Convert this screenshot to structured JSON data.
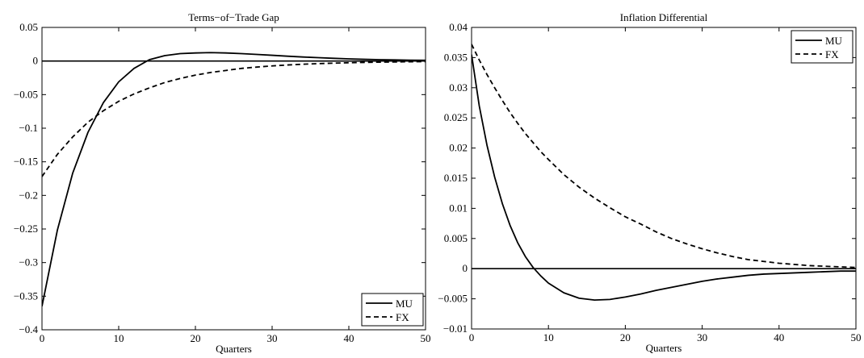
{
  "chart_data": [
    {
      "type": "line",
      "title": "Terms−of−Trade Gap",
      "xlabel": "Quarters",
      "ylabel": "",
      "xlim": [
        0,
        50
      ],
      "ylim": [
        -0.4,
        0.05
      ],
      "xticks": [
        0,
        10,
        20,
        30,
        40,
        50
      ],
      "xtick_labels": [
        "0",
        "10",
        "20",
        "30",
        "40",
        "50"
      ],
      "yticks": [
        0.05,
        0,
        -0.05,
        -0.1,
        -0.15,
        -0.2,
        -0.25,
        -0.3,
        -0.35,
        -0.4
      ],
      "ytick_labels": [
        "0.05",
        "0",
        "−0.05",
        "−0.1",
        "−0.15",
        "−0.2",
        "−0.25",
        "−0.3",
        "−0.35",
        "−0.4"
      ],
      "legend_position": "bottom-right",
      "grid": false,
      "zero_line": true,
      "x": [
        0,
        2,
        4,
        6,
        8,
        10,
        12,
        14,
        16,
        18,
        20,
        22,
        24,
        26,
        28,
        30,
        32,
        34,
        36,
        38,
        40,
        42,
        44,
        46,
        48,
        50
      ],
      "series": [
        {
          "name": "MU",
          "style": "solid",
          "values": [
            -0.365,
            -0.252,
            -0.167,
            -0.106,
            -0.062,
            -0.031,
            -0.011,
            0.002,
            0.008,
            0.011,
            0.012,
            0.0125,
            0.012,
            0.011,
            0.0098,
            0.0085,
            0.0072,
            0.006,
            0.005,
            0.004,
            0.0032,
            0.0025,
            0.002,
            0.0016,
            0.0012,
            0.001
          ]
        },
        {
          "name": "FX",
          "style": "dashed",
          "values": [
            -0.172,
            -0.139,
            -0.113,
            -0.091,
            -0.074,
            -0.06,
            -0.049,
            -0.04,
            -0.032,
            -0.026,
            -0.021,
            -0.017,
            -0.014,
            -0.011,
            -0.009,
            -0.0073,
            -0.0059,
            -0.0048,
            -0.0039,
            -0.0032,
            -0.0026,
            -0.0021,
            -0.0017,
            -0.0014,
            -0.0011,
            -0.0009
          ]
        }
      ]
    },
    {
      "type": "line",
      "title": "Inflation Differential",
      "xlabel": "Quarters",
      "ylabel": "",
      "xlim": [
        0,
        50
      ],
      "ylim": [
        -0.01,
        0.04
      ],
      "xticks": [
        0,
        10,
        20,
        30,
        40,
        50
      ],
      "xtick_labels": [
        "0",
        "10",
        "20",
        "30",
        "40",
        "50"
      ],
      "yticks": [
        0.04,
        0.035,
        0.03,
        0.025,
        0.02,
        0.015,
        0.01,
        0.005,
        0,
        -0.005,
        -0.01
      ],
      "ytick_labels": [
        "0.04",
        "0.035",
        "0.03",
        "0.025",
        "0.02",
        "0.015",
        "0.01",
        "0.005",
        "0",
        "−0.005",
        "−0.01"
      ],
      "legend_position": "top-right",
      "grid": false,
      "zero_line": true,
      "x": [
        0,
        1,
        2,
        3,
        4,
        5,
        6,
        7,
        8,
        9,
        10,
        12,
        14,
        16,
        18,
        20,
        22,
        24,
        26,
        28,
        30,
        32,
        34,
        36,
        38,
        40,
        42,
        44,
        46,
        48,
        50
      ],
      "series": [
        {
          "name": "MU",
          "style": "solid",
          "values": [
            0.0355,
            0.027,
            0.0205,
            0.0152,
            0.0108,
            0.0072,
            0.0043,
            0.002,
            0.0002,
            -0.0012,
            -0.0024,
            -0.004,
            -0.0049,
            -0.0052,
            -0.0051,
            -0.0047,
            -0.0042,
            -0.0036,
            -0.0031,
            -0.0026,
            -0.0021,
            -0.0017,
            -0.0014,
            -0.0011,
            -0.0009,
            -0.0008,
            -0.0007,
            -0.0006,
            -0.0005,
            -0.0004,
            -0.0004
          ]
        },
        {
          "name": "FX",
          "style": "dashed",
          "values": [
            0.0372,
            0.0346,
            0.0322,
            0.03,
            0.0279,
            0.0259,
            0.0241,
            0.0224,
            0.0209,
            0.0194,
            0.0181,
            0.0156,
            0.0135,
            0.0117,
            0.0101,
            0.0086,
            0.0074,
            0.0061,
            0.005,
            0.0041,
            0.0033,
            0.0026,
            0.002,
            0.0015,
            0.0012,
            0.0009,
            0.0007,
            0.0005,
            0.0004,
            0.0003,
            0.0002
          ]
        }
      ]
    }
  ]
}
